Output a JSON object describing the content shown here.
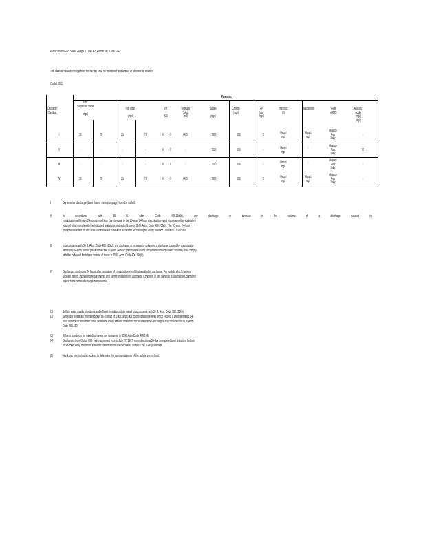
{
  "header": {
    "title": "Public Notice/Fact Sheet - Page 5 - NPDES Permit No. IL0061247",
    "intro": "The alkaline mine discharge from this facility shall be monitored and limited at all times as follows:",
    "outfall": "Outfall:  003"
  },
  "table": {
    "parameters_label": "Parameters",
    "col_condition": [
      "Discharge",
      "Condition"
    ],
    "col_tss": [
      "Total",
      "Suspended Solids",
      "(mg/l)"
    ],
    "col_iron": [
      "Iron (total)",
      "(mg/l)"
    ],
    "col_ph": [
      "pH",
      "(SU)"
    ],
    "col_settleable": [
      "Settleable",
      "Solids",
      "(ml/l)"
    ],
    "col_sulfate": [
      "Sulfate",
      "(mg/l)"
    ],
    "col_chloride": [
      "Chloride",
      "(mg/l)"
    ],
    "col_fe": [
      "Fe",
      "(dis)",
      "(mg/l)"
    ],
    "col_hardness": [
      "Hardness",
      "(5)"
    ],
    "col_manganese": [
      "Manganese"
    ],
    "col_flow": [
      "Flow",
      "(MGD)"
    ],
    "col_alkalinity": [
      "Alkalinity/",
      "Acidity",
      "(mg/l)"
    ],
    "rows": [
      {
        "cells": [
          "I",
          "35",
          "70",
          "3.5",
          "7.0",
          "6",
          "- 9",
          "(4)(5)",
          "3500",
          "500",
          "1",
          "Report mg/l",
          "Report mg/l",
          "Measure Flow Daily",
          "-"
        ]
      },
      {
        "cells": [
          "II",
          "-",
          "-",
          "-",
          "-",
          "6",
          "- 9",
          "-",
          "3500",
          "500",
          "-",
          "Report mg/l",
          "-",
          "Measure Flow Daily",
          "0.5"
        ]
      },
      {
        "cells": [
          "III",
          "-",
          "-",
          "-",
          "-",
          "6",
          "- 9",
          "-",
          "3500",
          "500",
          "-",
          "Report mg/l",
          "-",
          "Measure Flow Daily",
          "-"
        ]
      },
      {
        "cells": [
          "IV",
          "35",
          "70",
          "3.5",
          "7.0",
          "6",
          "- 9",
          "(4)(5)",
          "3500",
          "500",
          "1",
          "Report mg/l",
          "Report mg/l",
          "Measure Flow Daily",
          "-"
        ]
      }
    ]
  },
  "conditions": [
    {
      "num": "I",
      "lines": [
        "Dry weather discharge (base flow or mine pumpage) from the outfall."
      ]
    },
    {
      "num": "II",
      "lines": [
        "In accordance with 35 Ill. Adm. Code 406.110(b), any discharge or increase in the volume of a discharge caused by",
        "precipitation within any 24-hour period less than or equal to the 10-year, 24-hour precipitation event (or snowmelt of equivalent",
        "volume) shall comply with the indicated limitations instead of those in 35 Ill. Adm. Code 406.106(b).  The 10-year, 24-hour",
        "precipitation event for this area is considered to be 4.53 inches for McDonough County in which Outfall 003 is located."
      ]
    },
    {
      "num": "III",
      "lines": [
        "In accordance with 35 Ill. Adm. Code 406.110(d), any discharge or increase in volume of a discharge caused by precipitation",
        "within any 24-hour period greater than the 10-year, 24-hour precipitation event (or snowmelt of equivalent volume) shall comply",
        "with the indicated limitations instead of those in 35 Ill. Adm. Code 406.106(b)."
      ]
    },
    {
      "num": "IV",
      "lines": [
        "Discharges continuing 24 hours after cessation of precipitation event that resulted in discharge.  For outfalls which have no",
        "allowed mixing, monitoring requirements and permit limitations of Discharge Condition IV are identical to Discharge Condition I",
        "to which the outfall discharge has reverted."
      ]
    }
  ],
  "footnotes": [
    {
      "num": "(1)",
      "lines": [
        "Sulfate water quality standards and effluent limitations determined in accordance with 35 Ill. Adm. Code 302.208(h)."
      ]
    },
    {
      "num": "(2)",
      "lines": [
        "Settleable solids are monitored only as a result of a discharge due to precipitation events which exceed a predetermined 24-",
        "hour duration or snowmelt total.  Settleable solids effluent limitations for alkaline mine discharges are contained in 35 Ill. Adm.",
        "Code 406.110."
      ]
    },
    {
      "num": "(3)",
      "lines": [
        "Effluent standards for mine discharges are contained in 35 Ill. Adm Code 406.106."
      ]
    },
    {
      "num": "(4)",
      "lines": [
        "Discharges from Outfall 003, being approved prior to July 27, 1987, are subject to a 30-day average effluent limitation for Iron",
        "of 3.5 mg/l.  Daily maximum effluent concentrations are calculated as twice the 30-day average."
      ]
    },
    {
      "num": "(5)",
      "lines": [
        "Hardness monitoring is required to determine the appropriateness of the sulfate permit limit."
      ]
    }
  ]
}
